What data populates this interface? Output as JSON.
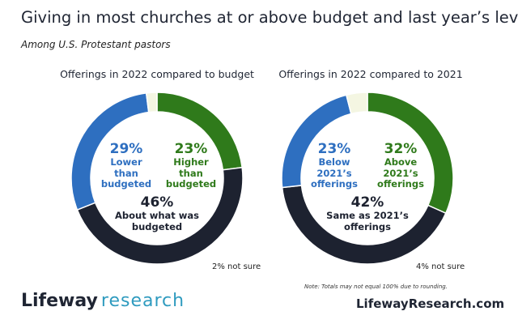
{
  "header": {
    "title": "Giving in most churches at or above budget and last year’s levels",
    "subtitle": "Among U.S. Protestant pastors"
  },
  "colors": {
    "blue": "#2e6fc0",
    "green": "#2f7a1b",
    "dark": "#1d2230",
    "not_sure": "#f4f6e2",
    "brand_teal": "#2f9bbf"
  },
  "chart_data": [
    {
      "type": "pie",
      "title": "Offerings in 2022 compared to budget",
      "slices": [
        {
          "pct_label": "23%",
          "label_lines": [
            "Higher",
            "than",
            "budgeted"
          ],
          "value": 23,
          "color": "#2f7a1b"
        },
        {
          "pct_label": "46%",
          "label_lines": [
            "About what was",
            "budgeted"
          ],
          "value": 46,
          "color": "#1d2230"
        },
        {
          "pct_label": "29%",
          "label_lines": [
            "Lower",
            "than",
            "budgeted"
          ],
          "value": 29,
          "color": "#2e6fc0"
        },
        {
          "pct_label": "2% not sure",
          "label_lines": [],
          "value": 2,
          "color": "#f4f6e2"
        }
      ]
    },
    {
      "type": "pie",
      "title": "Offerings in 2022 compared to 2021",
      "slices": [
        {
          "pct_label": "32%",
          "label_lines": [
            "Above",
            "2021’s",
            "offerings"
          ],
          "value": 32,
          "color": "#2f7a1b"
        },
        {
          "pct_label": "42%",
          "label_lines": [
            "Same as 2021’s",
            "offerings"
          ],
          "value": 42,
          "color": "#1d2230"
        },
        {
          "pct_label": "23%",
          "label_lines": [
            "Below",
            "2021’s",
            "offerings"
          ],
          "value": 23,
          "color": "#2e6fc0"
        },
        {
          "pct_label": "4% not sure",
          "label_lines": [],
          "value": 4,
          "color": "#f4f6e2"
        }
      ]
    }
  ],
  "footer": {
    "note": "Note: Totals may not equal 100% due to rounding.",
    "logo_word1": "Lifeway",
    "logo_word2": "research",
    "site": "LifewayResearch.com"
  }
}
